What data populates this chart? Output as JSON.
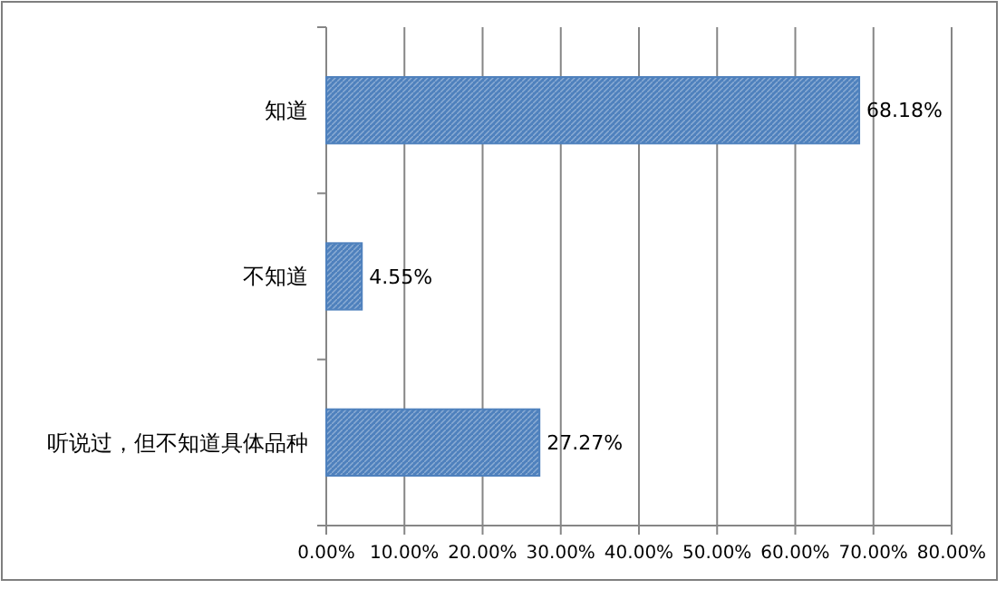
{
  "chart_data": {
    "type": "bar",
    "orientation": "horizontal",
    "categories": [
      "知道",
      "不知道",
      "听说过，但不知道具体品种"
    ],
    "values": [
      68.18,
      4.55,
      27.27
    ],
    "value_labels": [
      "68.18%",
      "4.55%",
      "27.27%"
    ],
    "color": "#4f81bd",
    "xlim": [
      0,
      80
    ],
    "xticks": [
      {
        "value": 0,
        "label": "0.00%"
      },
      {
        "value": 10,
        "label": "10.00%"
      },
      {
        "value": 20,
        "label": "20.00%"
      },
      {
        "value": 30,
        "label": "30.00%"
      },
      {
        "value": 40,
        "label": "40.00%"
      },
      {
        "value": 50,
        "label": "50.00%"
      },
      {
        "value": 60,
        "label": "60.00%"
      },
      {
        "value": 70,
        "label": "70.00%"
      },
      {
        "value": 80,
        "label": "80.00%"
      }
    ],
    "grid": "x"
  }
}
